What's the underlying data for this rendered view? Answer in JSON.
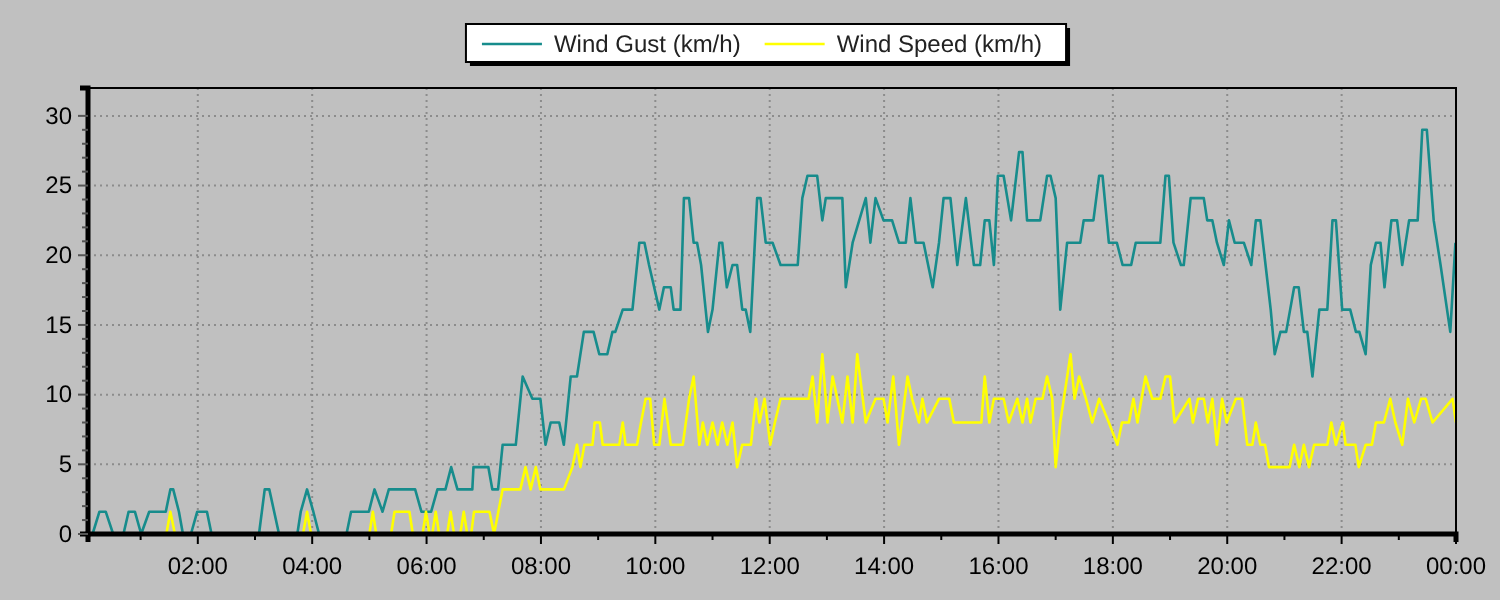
{
  "chart_data": {
    "type": "line",
    "xlim": [
      0.08,
      24
    ],
    "ylim": [
      0,
      32
    ],
    "xticks": [
      {
        "value": 1,
        "label": null
      },
      {
        "value": 2,
        "label": "02:00"
      },
      {
        "value": 3,
        "label": null
      },
      {
        "value": 4,
        "label": "04:00"
      },
      {
        "value": 5,
        "label": null
      },
      {
        "value": 6,
        "label": "06:00"
      },
      {
        "value": 7,
        "label": null
      },
      {
        "value": 8,
        "label": "08:00"
      },
      {
        "value": 9,
        "label": null
      },
      {
        "value": 10,
        "label": "10:00"
      },
      {
        "value": 11,
        "label": null
      },
      {
        "value": 12,
        "label": "12:00"
      },
      {
        "value": 13,
        "label": null
      },
      {
        "value": 14,
        "label": "14:00"
      },
      {
        "value": 15,
        "label": null
      },
      {
        "value": 16,
        "label": "16:00"
      },
      {
        "value": 17,
        "label": null
      },
      {
        "value": 18,
        "label": "18:00"
      },
      {
        "value": 19,
        "label": null
      },
      {
        "value": 20,
        "label": "20:00"
      },
      {
        "value": 21,
        "label": null
      },
      {
        "value": 22,
        "label": "22:00"
      },
      {
        "value": 23,
        "label": null
      },
      {
        "value": 24,
        "label": "00:00"
      }
    ],
    "yticks": [
      0,
      {
        "value": 1,
        "label": null
      },
      {
        "value": 2,
        "label": null
      },
      {
        "value": 3,
        "label": null
      },
      {
        "value": 4,
        "label": null
      },
      5,
      {
        "value": 6,
        "label": null
      },
      {
        "value": 7,
        "label": null
      },
      {
        "value": 8,
        "label": null
      },
      {
        "value": 9,
        "label": null
      },
      10,
      {
        "value": 11,
        "label": null
      },
      {
        "value": 12,
        "label": null
      },
      {
        "value": 13,
        "label": null
      },
      {
        "value": 14,
        "label": null
      },
      15,
      {
        "value": 16,
        "label": null
      },
      {
        "value": 17,
        "label": null
      },
      {
        "value": 18,
        "label": null
      },
      {
        "value": 19,
        "label": null
      },
      20,
      {
        "value": 21,
        "label": null
      },
      {
        "value": 22,
        "label": null
      },
      {
        "value": 23,
        "label": null
      },
      {
        "value": 24,
        "label": null
      },
      25,
      {
        "value": 26,
        "label": null
      },
      {
        "value": 27,
        "label": null
      },
      {
        "value": 28,
        "label": null
      },
      {
        "value": 29,
        "label": null
      },
      30
    ],
    "grid": true,
    "legend": "top",
    "marker": "none",
    "line_style": "solid",
    "series": [
      {
        "name": "Wind Gust (km/h)",
        "color": "#178c8c",
        "x": [
          0.16,
          0.28,
          0.39,
          0.52,
          0.7,
          0.79,
          0.9,
          1.01,
          1.15,
          1.44,
          1.52,
          1.57,
          1.67,
          1.74,
          1.88,
          1.99,
          2.16,
          2.24,
          3.07,
          3.17,
          3.25,
          3.42,
          3.74,
          3.8,
          3.91,
          4.02,
          4.12,
          4.6,
          4.68,
          4.99,
          5.09,
          5.23,
          5.34,
          5.8,
          5.91,
          6.08,
          6.19,
          6.33,
          6.43,
          6.54,
          6.8,
          6.82,
          7.08,
          7.15,
          7.25,
          7.33,
          7.56,
          7.68,
          7.85,
          7.99,
          8.08,
          8.17,
          8.32,
          8.4,
          8.52,
          8.63,
          8.75,
          8.92,
          9.02,
          9.16,
          9.25,
          9.3,
          9.43,
          9.6,
          9.72,
          9.81,
          9.89,
          10.07,
          10.15,
          10.27,
          10.32,
          10.44,
          10.5,
          10.59,
          10.67,
          10.73,
          10.8,
          10.92,
          11.0,
          11.12,
          11.17,
          11.25,
          11.35,
          11.43,
          11.52,
          11.58,
          11.66,
          11.78,
          11.84,
          11.93,
          12.05,
          12.19,
          12.49,
          12.57,
          12.66,
          12.83,
          12.92,
          12.98,
          13.27,
          13.33,
          13.45,
          13.68,
          13.76,
          13.85,
          13.99,
          14.14,
          14.26,
          14.38,
          14.46,
          14.55,
          14.69,
          14.85,
          14.96,
          15.04,
          15.16,
          15.28,
          15.43,
          15.57,
          15.68,
          15.76,
          15.84,
          15.92,
          15.99,
          16.09,
          16.22,
          16.36,
          16.42,
          16.5,
          16.73,
          16.85,
          16.91,
          17.0,
          17.08,
          17.2,
          17.43,
          17.49,
          17.66,
          17.76,
          17.82,
          17.93,
          18.07,
          18.17,
          18.32,
          18.4,
          18.83,
          18.92,
          18.98,
          19.06,
          19.19,
          19.24,
          19.36,
          19.59,
          19.65,
          19.74,
          19.82,
          19.94,
          20.03,
          20.13,
          20.29,
          20.42,
          20.5,
          20.58,
          20.67,
          20.76,
          20.83,
          20.93,
          21.03,
          21.1,
          21.17,
          21.25,
          21.34,
          21.4,
          21.49,
          21.61,
          21.75,
          21.84,
          21.9,
          22.01,
          22.15,
          22.25,
          22.31,
          22.42,
          22.51,
          22.6,
          22.68,
          22.75,
          22.87,
          22.97,
          23.06,
          23.18,
          23.33,
          23.41,
          23.49,
          23.61,
          23.73,
          23.9,
          23.99
        ],
        "values": [
          0,
          1.6,
          1.6,
          0,
          0,
          1.6,
          1.6,
          0,
          1.6,
          1.6,
          3.2,
          3.2,
          1.6,
          0,
          0,
          1.6,
          1.6,
          0,
          0,
          3.2,
          3.2,
          0,
          0,
          1.6,
          3.2,
          1.6,
          0,
          0,
          1.6,
          1.6,
          3.2,
          1.6,
          3.2,
          3.2,
          1.6,
          1.6,
          3.2,
          3.2,
          4.8,
          3.2,
          3.2,
          4.8,
          4.8,
          3.2,
          3.2,
          6.4,
          6.4,
          11.3,
          9.7,
          9.7,
          6.4,
          8,
          8,
          6.4,
          11.3,
          11.3,
          14.5,
          14.5,
          12.9,
          12.9,
          14.5,
          14.5,
          16.1,
          16.1,
          20.9,
          20.9,
          19.3,
          16.1,
          17.7,
          17.7,
          16.1,
          16.1,
          24.1,
          24.1,
          20.9,
          20.9,
          19.3,
          14.5,
          16.1,
          20.9,
          20.9,
          17.7,
          19.3,
          19.3,
          16.1,
          16.1,
          14.5,
          24.1,
          24.1,
          20.9,
          20.9,
          19.3,
          19.3,
          24.1,
          25.7,
          25.7,
          22.5,
          24.1,
          24.1,
          17.7,
          20.9,
          24.1,
          20.9,
          24.1,
          22.5,
          22.5,
          20.9,
          20.9,
          24.1,
          20.9,
          20.9,
          17.7,
          20.9,
          24.1,
          24.1,
          19.3,
          24.1,
          19.3,
          19.3,
          22.5,
          22.5,
          19.3,
          25.7,
          25.7,
          22.5,
          27.4,
          27.4,
          22.5,
          22.5,
          25.7,
          25.7,
          24.1,
          16.1,
          20.9,
          20.9,
          22.5,
          22.5,
          25.7,
          25.7,
          20.9,
          20.9,
          19.3,
          19.3,
          20.9,
          20.9,
          25.7,
          25.7,
          20.9,
          19.3,
          19.3,
          24.1,
          24.1,
          22.5,
          22.5,
          20.9,
          19.3,
          22.5,
          20.9,
          20.9,
          19.3,
          22.5,
          22.5,
          19.3,
          16.1,
          12.9,
          14.5,
          14.5,
          16.1,
          17.7,
          17.7,
          14.5,
          14.5,
          11.3,
          16.1,
          16.1,
          22.5,
          22.5,
          16.1,
          16.1,
          14.5,
          14.5,
          12.9,
          19.3,
          20.9,
          20.9,
          17.7,
          22.5,
          22.5,
          19.3,
          22.5,
          22.5,
          29,
          29,
          22.5,
          19.3,
          14.5,
          20.9
        ]
      },
      {
        "name": "Wind Speed (km/h)",
        "color": "#ffff00",
        "x": [
          0.16,
          1.45,
          1.52,
          1.6,
          3.84,
          3.91,
          3.98,
          5.0,
          5.06,
          5.12,
          5.38,
          5.44,
          5.7,
          5.76,
          5.93,
          5.99,
          6.05,
          6.1,
          6.16,
          6.22,
          6.36,
          6.42,
          6.48,
          6.59,
          6.65,
          6.71,
          6.78,
          6.83,
          7.1,
          7.18,
          7.33,
          7.64,
          7.73,
          7.82,
          7.91,
          7.99,
          8.4,
          8.55,
          8.63,
          8.69,
          8.76,
          8.9,
          8.94,
          9.03,
          9.08,
          9.37,
          9.43,
          9.48,
          9.68,
          9.75,
          9.83,
          9.91,
          9.98,
          10.07,
          10.16,
          10.27,
          10.48,
          10.59,
          10.67,
          10.77,
          10.83,
          10.91,
          11.0,
          11.09,
          11.17,
          11.26,
          11.35,
          11.43,
          11.52,
          11.67,
          11.76,
          11.82,
          11.91,
          12.01,
          12.09,
          12.19,
          12.68,
          12.75,
          12.83,
          12.92,
          13.01,
          13.1,
          13.27,
          13.36,
          13.45,
          13.53,
          13.68,
          13.85,
          13.99,
          14.06,
          14.16,
          14.26,
          14.41,
          14.49,
          14.61,
          14.67,
          14.75,
          14.96,
          15.14,
          15.22,
          15.45,
          15.5,
          15.7,
          15.76,
          15.84,
          15.92,
          16.09,
          16.18,
          16.33,
          16.42,
          16.5,
          16.56,
          16.65,
          16.77,
          16.85,
          16.94,
          17.0,
          17.08,
          17.26,
          17.33,
          17.41,
          17.53,
          17.64,
          17.76,
          17.93,
          18.08,
          18.16,
          18.28,
          18.36,
          18.43,
          18.57,
          18.69,
          18.83,
          18.92,
          19.0,
          19.08,
          19.34,
          19.4,
          19.49,
          19.59,
          19.66,
          19.74,
          19.82,
          19.91,
          19.99,
          20.15,
          20.26,
          20.35,
          20.44,
          20.5,
          20.58,
          20.66,
          20.73,
          21.09,
          21.17,
          21.26,
          21.34,
          21.43,
          21.52,
          21.75,
          21.82,
          21.9,
          22.02,
          22.07,
          22.24,
          22.3,
          22.42,
          22.53,
          22.6,
          22.74,
          22.85,
          22.94,
          23.06,
          23.16,
          23.27,
          23.39,
          23.47,
          23.59,
          23.94,
          24.0
        ],
        "values": [
          0,
          0,
          1.6,
          0,
          0,
          1.6,
          0,
          0,
          1.6,
          0,
          0,
          1.6,
          1.6,
          0,
          0,
          1.6,
          0,
          0,
          1.6,
          0,
          0,
          1.6,
          0,
          0,
          1.6,
          0,
          0,
          1.6,
          1.6,
          0,
          3.2,
          3.2,
          4.8,
          3.2,
          4.8,
          3.2,
          3.2,
          4.8,
          6.4,
          4.8,
          6.4,
          6.4,
          8,
          8,
          6.4,
          6.4,
          8,
          6.4,
          6.4,
          8,
          9.7,
          9.7,
          6.4,
          6.4,
          9.7,
          6.4,
          6.4,
          9.7,
          11.3,
          6.4,
          8,
          6.4,
          8,
          6.4,
          8,
          6.4,
          8,
          4.8,
          6.4,
          6.4,
          9.7,
          8,
          9.7,
          6.4,
          8,
          9.7,
          9.7,
          11.3,
          8,
          12.9,
          8,
          11.3,
          8,
          11.3,
          8,
          12.9,
          8,
          9.7,
          9.7,
          8,
          11.3,
          6.4,
          11.3,
          9.7,
          8,
          9.7,
          8,
          9.7,
          9.7,
          8,
          8,
          8,
          8,
          11.3,
          8,
          9.7,
          9.7,
          8,
          9.7,
          8,
          9.7,
          8,
          9.7,
          9.7,
          11.3,
          9.7,
          4.8,
          8,
          12.9,
          9.7,
          11.3,
          9.7,
          8,
          9.7,
          8,
          6.4,
          8,
          8,
          9.7,
          8,
          11.3,
          9.7,
          9.7,
          11.3,
          11.3,
          8,
          9.7,
          8,
          9.7,
          9.7,
          8,
          9.7,
          6.4,
          9.7,
          8,
          9.7,
          9.7,
          6.4,
          6.4,
          8,
          6.4,
          6.4,
          4.8,
          4.8,
          6.4,
          4.8,
          6.4,
          4.8,
          6.4,
          6.4,
          8,
          6.4,
          8,
          6.4,
          6.4,
          4.8,
          6.4,
          6.4,
          8,
          8,
          9.7,
          8,
          6.4,
          9.7,
          8,
          9.7,
          9.7,
          8,
          9.7,
          8
        ]
      }
    ]
  }
}
